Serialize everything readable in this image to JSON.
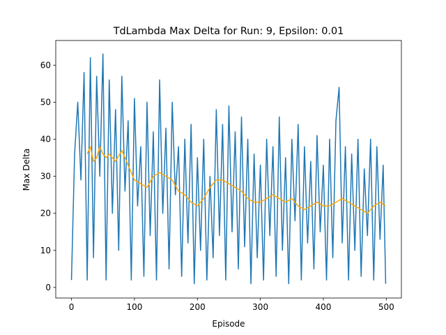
{
  "chart_data": {
    "type": "line",
    "title": "TdLambda Max Delta for Run: 9, Epsilon: 0.01",
    "xlabel": "Episode",
    "ylabel": "Max Delta",
    "xlim": [
      -24.95,
      523.95
    ],
    "ylim": [
      -2.85,
      66.65
    ],
    "xticks": [
      0,
      100,
      200,
      300,
      400,
      500
    ],
    "yticks": [
      0,
      10,
      20,
      30,
      40,
      50,
      60
    ],
    "series": [
      {
        "color": "#1f77b4",
        "x": [
          0,
          5,
          10,
          15,
          20,
          25,
          30,
          35,
          40,
          45,
          50,
          55,
          60,
          65,
          70,
          75,
          80,
          85,
          90,
          95,
          100,
          105,
          110,
          115,
          120,
          125,
          130,
          135,
          140,
          145,
          150,
          155,
          160,
          165,
          170,
          175,
          180,
          185,
          190,
          195,
          200,
          205,
          210,
          215,
          220,
          225,
          230,
          235,
          240,
          245,
          250,
          255,
          260,
          265,
          270,
          275,
          280,
          285,
          290,
          295,
          300,
          305,
          310,
          315,
          320,
          325,
          330,
          335,
          340,
          345,
          350,
          355,
          360,
          365,
          370,
          375,
          380,
          385,
          390,
          395,
          400,
          405,
          410,
          415,
          420,
          425,
          430,
          435,
          440,
          445,
          450,
          455,
          460,
          465,
          470,
          475,
          480,
          485,
          490,
          495,
          499
        ],
        "values": [
          2,
          36,
          50,
          29,
          58,
          2,
          62,
          8,
          57,
          30,
          63,
          2,
          56,
          20,
          48,
          10,
          57,
          26,
          45,
          2,
          51,
          22,
          38,
          3,
          50,
          14,
          42,
          2,
          56,
          20,
          43,
          5,
          50,
          25,
          38,
          3,
          40,
          12,
          44,
          1,
          35,
          10,
          40,
          2,
          30,
          8,
          48,
          14,
          44,
          2,
          49,
          15,
          42,
          5,
          46,
          11,
          40,
          1,
          36,
          8,
          33,
          2,
          40,
          14,
          38,
          3,
          46,
          10,
          35,
          1,
          40,
          18,
          44,
          2,
          38,
          12,
          34,
          5,
          41,
          15,
          33,
          2,
          40,
          8,
          45,
          54,
          12,
          38,
          2,
          36,
          10,
          40,
          3,
          32,
          14,
          40,
          2,
          38,
          13,
          33,
          1
        ]
      },
      {
        "color": "#ffa500",
        "x": [
          25,
          30,
          35,
          40,
          45,
          50,
          55,
          60,
          70,
          80,
          90,
          100,
          110,
          120,
          130,
          140,
          150,
          160,
          170,
          180,
          190,
          200,
          210,
          220,
          230,
          240,
          250,
          260,
          270,
          280,
          290,
          300,
          310,
          320,
          330,
          340,
          350,
          360,
          370,
          380,
          390,
          400,
          410,
          420,
          430,
          440,
          450,
          460,
          470,
          480,
          490,
          499
        ],
        "values": [
          36,
          38,
          34,
          35,
          38,
          36,
          35,
          36,
          34,
          37,
          33,
          29,
          28,
          27,
          30,
          31,
          30,
          29,
          26,
          25,
          23,
          22,
          24,
          27,
          29,
          29,
          28,
          27,
          26,
          24,
          23,
          23,
          24,
          25,
          24,
          23,
          24,
          22,
          21,
          22,
          23,
          22,
          22,
          23,
          24,
          23,
          22,
          21,
          20,
          22,
          23,
          22
        ]
      }
    ]
  }
}
